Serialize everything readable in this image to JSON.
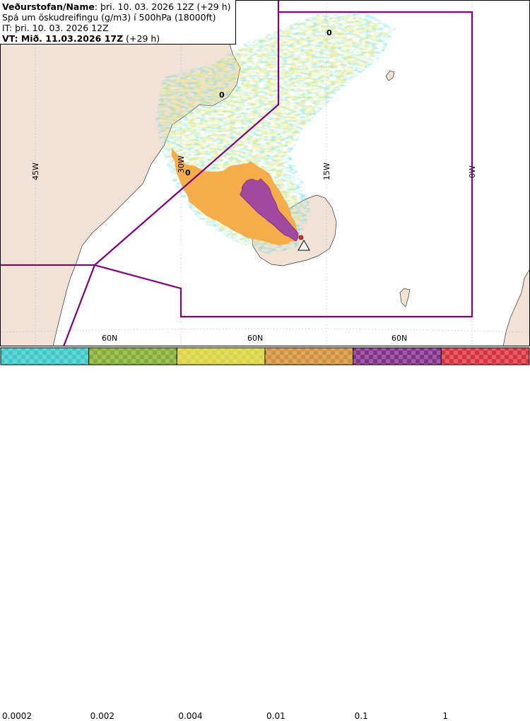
{
  "header": {
    "org_label": "Veðurstofan/Name",
    "run_text": ": þri. 10. 03. 2026 12Z (+29 h)",
    "product": "Spá um öskudreifingu (g/m3) í 500hPa (18000ft)",
    "issue_time": "IT: þri. 10. 03. 2026 12Z",
    "valid_time": "VT: Mið. 11.03.2026 17Z",
    "valid_offset": " (+29 h)"
  },
  "map": {
    "meridians": [
      {
        "label": "45W",
        "lon": -45
      },
      {
        "label": "30W",
        "lon": -30
      },
      {
        "label": "15W",
        "lon": -15
      },
      {
        "label": "0W",
        "lon": 0
      }
    ],
    "parallel_labels": [
      "60N",
      "60N",
      "60N"
    ],
    "contour_labels": [
      "0",
      "0",
      "0"
    ],
    "colors": {
      "land": "#f2e2d6",
      "sea": "#ffffff",
      "boundary": "#800080",
      "grid": "#b3b3b3",
      "ash_low": "#4fd8d8",
      "ash_mid": "#f6e96c",
      "ash_high": "#f5ad4c",
      "ash_top": "#a14aa0"
    }
  },
  "legend": {
    "swatch_colors": [
      "#3ec9c9",
      "#84ad33",
      "#d9d43f",
      "#d2923d",
      "#823189",
      "#d8323f"
    ],
    "tick_labels": [
      "0.0002",
      "0.002",
      "0.004",
      "0.01",
      "0.1",
      "1"
    ]
  }
}
